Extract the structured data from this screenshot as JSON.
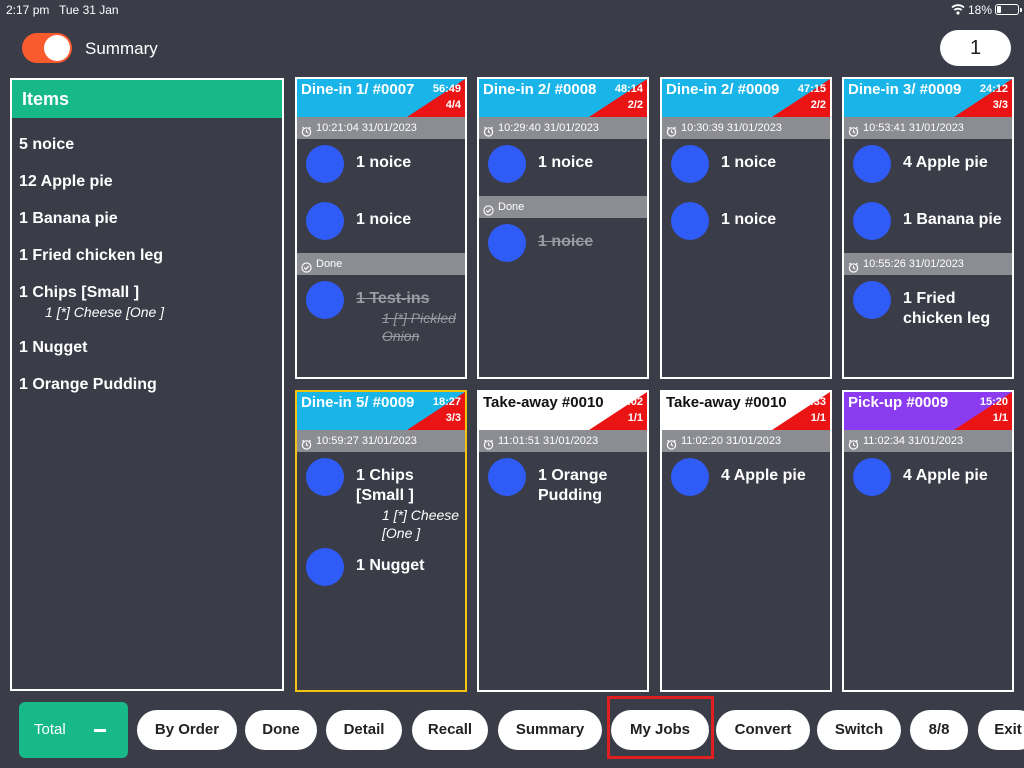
{
  "status": {
    "time": "2:17 pm",
    "date": "Tue 31 Jan",
    "battery": "18%"
  },
  "header": {
    "summary_label": "Summary",
    "counter": "1"
  },
  "items_panel": {
    "title": "Items",
    "items": [
      {
        "label": "5 noice"
      },
      {
        "label": "12 Apple pie"
      },
      {
        "label": "1 Banana pie"
      },
      {
        "label": "1 Fried chicken leg"
      },
      {
        "label": "1 Chips  [Small ]",
        "modifier": "1 [*] Cheese [One ]"
      },
      {
        "label": "1 Nugget"
      },
      {
        "label": "1 Orange Pudding"
      }
    ]
  },
  "orders": [
    {
      "title": "Dine-in 1/ #0007",
      "timer": "56:49",
      "count": "4/4",
      "head_color": "#1ab5e8",
      "head_text": "#ffffff",
      "sections": [
        {
          "time": "10:21:04 31/01/2023",
          "items": [
            {
              "text": "1 noice"
            },
            {
              "text": "1 noice"
            }
          ]
        },
        {
          "done": "Done",
          "items": [
            {
              "text": "1 Test-ins",
              "mod": "1 [*] Pickled Onion",
              "struck": true
            }
          ]
        }
      ]
    },
    {
      "title": "Dine-in 2/ #0008",
      "timer": "48:14",
      "count": "2/2",
      "head_color": "#1ab5e8",
      "head_text": "#ffffff",
      "sections": [
        {
          "time": "10:29:40 31/01/2023",
          "items": [
            {
              "text": "1 noice"
            }
          ]
        },
        {
          "done": "Done",
          "items": [
            {
              "text": "1 noice",
              "struck": true
            }
          ]
        }
      ]
    },
    {
      "title": "Dine-in 2/ #0009",
      "timer": "47:15",
      "count": "2/2",
      "head_color": "#1ab5e8",
      "head_text": "#ffffff",
      "sections": [
        {
          "time": "10:30:39 31/01/2023",
          "items": [
            {
              "text": "1 noice"
            },
            {
              "text": "1 noice"
            }
          ]
        }
      ]
    },
    {
      "title": "Dine-in 3/ #0009",
      "timer": "24:12",
      "count": "3/3",
      "head_color": "#1ab5e8",
      "head_text": "#ffffff",
      "sections": [
        {
          "time": "10:53:41 31/01/2023",
          "items": [
            {
              "text": "4 Apple pie"
            },
            {
              "text": "1 Banana pie"
            }
          ]
        },
        {
          "time": "10:55:26 31/01/2023",
          "items": [
            {
              "text": "1 Fried chicken leg"
            }
          ]
        }
      ]
    },
    {
      "title": "Dine-in 5/ #0009",
      "timer": "18:27",
      "count": "3/3",
      "head_color": "#1ab5e8",
      "head_text": "#ffffff",
      "highlight": true,
      "sections": [
        {
          "time": "10:59:27 31/01/2023",
          "items": [
            {
              "text": "1 Chips [Small ]",
              "mod": "1 [*] Cheese [One ]"
            },
            {
              "text": "1 Nugget"
            }
          ]
        }
      ]
    },
    {
      "title": "Take-away  #0010",
      "timer": "16:02",
      "count": "1/1",
      "head_color": "#ffffff",
      "head_text": "#111111",
      "sections": [
        {
          "time": "11:01:51 31/01/2023",
          "items": [
            {
              "text": "1 Orange Pudding"
            }
          ]
        }
      ]
    },
    {
      "title": "Take-away  #0010",
      "timer": "15:33",
      "count": "1/1",
      "head_color": "#ffffff",
      "head_text": "#111111",
      "sections": [
        {
          "time": "11:02:20 31/01/2023",
          "items": [
            {
              "text": "4 Apple pie"
            }
          ]
        }
      ]
    },
    {
      "title": "Pick-up  #0009",
      "timer": "15:20",
      "count": "1/1",
      "head_color": "#8c3cf0",
      "head_text": "#ffffff",
      "sections": [
        {
          "time": "11:02:34 31/01/2023",
          "items": [
            {
              "text": "4 Apple pie"
            }
          ]
        }
      ]
    }
  ],
  "bottom": {
    "total": "Total",
    "buttons": [
      "By Order",
      "Done",
      "Detail",
      "Recall",
      "Summary",
      "My Jobs",
      "Convert",
      "Switch",
      "8/8",
      "Exit"
    ]
  },
  "colors": {
    "accent_green": "#16b987",
    "timer_red": "#ea1414",
    "item_dot": "#2f5bf6",
    "highlight": "#f1c40f"
  }
}
